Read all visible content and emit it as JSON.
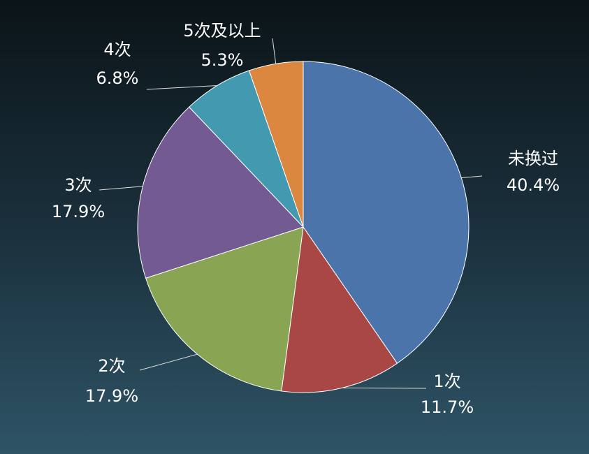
{
  "chart_data": {
    "type": "pie",
    "categories": [
      "未换过",
      "1次",
      "2次",
      "3次",
      "4次",
      "5次及以上"
    ],
    "values": [
      40.4,
      11.7,
      17.9,
      17.9,
      6.8,
      5.3
    ],
    "value_labels": [
      "40.4%",
      "11.7%",
      "17.9%",
      "17.9%",
      "6.8%",
      "5.3%"
    ],
    "colors": [
      "#4a74aa",
      "#a84744",
      "#89a553",
      "#745a92",
      "#4299b0",
      "#db8740"
    ]
  }
}
